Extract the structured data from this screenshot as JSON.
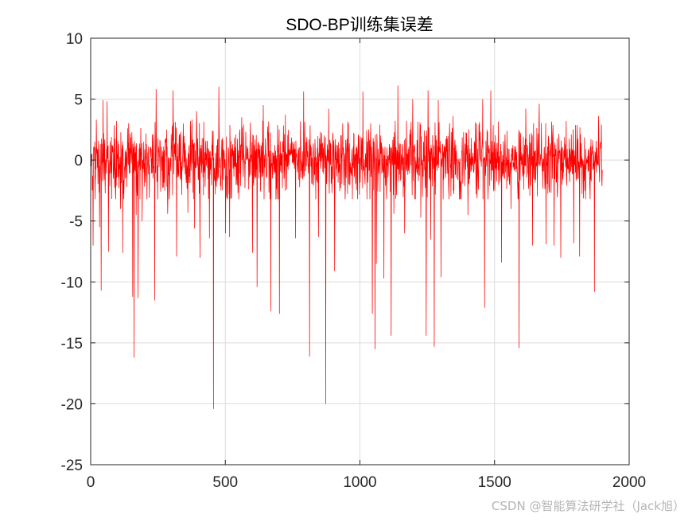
{
  "watermark": "CSDN @智能算法研学社（Jack旭）",
  "chart_data": {
    "type": "line",
    "title": "SDO-BP训练集误差",
    "xlabel": "",
    "ylabel": "",
    "xlim": [
      0,
      2000
    ],
    "ylim": [
      -25,
      10
    ],
    "xticks": [
      0,
      500,
      1000,
      1500,
      2000
    ],
    "yticks": [
      -25,
      -20,
      -15,
      -10,
      -5,
      0,
      5,
      10
    ],
    "xtick_labels": [
      "0",
      "500",
      "1000",
      "1500",
      "2000"
    ],
    "ytick_labels": [
      "-25",
      "-20",
      "-15",
      "-10",
      "-5",
      "0",
      "5",
      "10"
    ],
    "grid": true,
    "colors": {
      "series": "#ff0000",
      "grid": "#dcdcdc",
      "axes": "#262626"
    },
    "series": [
      {
        "name": "",
        "n_points": 1900,
        "baseline_amplitude": 1.2,
        "notable_points": [
          {
            "x": 8,
            "y": -7.0
          },
          {
            "x": 20,
            "y": 3.3
          },
          {
            "x": 32,
            "y": -5.5
          },
          {
            "x": 38,
            "y": -10.7
          },
          {
            "x": 45,
            "y": 4.9
          },
          {
            "x": 60,
            "y": 4.8
          },
          {
            "x": 65,
            "y": -7.5
          },
          {
            "x": 95,
            "y": 3.2
          },
          {
            "x": 110,
            "y": -4.0
          },
          {
            "x": 118,
            "y": -7.6
          },
          {
            "x": 140,
            "y": 3.0
          },
          {
            "x": 155,
            "y": -11.2
          },
          {
            "x": 160,
            "y": -16.2
          },
          {
            "x": 168,
            "y": -4.5
          },
          {
            "x": 175,
            "y": -11.3
          },
          {
            "x": 190,
            "y": -5.0
          },
          {
            "x": 237,
            "y": -11.5
          },
          {
            "x": 242,
            "y": 5.8
          },
          {
            "x": 285,
            "y": -4.4
          },
          {
            "x": 305,
            "y": 5.7
          },
          {
            "x": 318,
            "y": -7.9
          },
          {
            "x": 360,
            "y": -4.3
          },
          {
            "x": 375,
            "y": 3.3
          },
          {
            "x": 385,
            "y": -5.6
          },
          {
            "x": 392,
            "y": 4.0
          },
          {
            "x": 405,
            "y": -8.0
          },
          {
            "x": 440,
            "y": -6.4
          },
          {
            "x": 455,
            "y": -20.4
          },
          {
            "x": 462,
            "y": -2.8
          },
          {
            "x": 475,
            "y": 6.0
          },
          {
            "x": 500,
            "y": -6.0
          },
          {
            "x": 515,
            "y": -6.3
          },
          {
            "x": 560,
            "y": 3.5
          },
          {
            "x": 600,
            "y": -7.6
          },
          {
            "x": 617,
            "y": -10.4
          },
          {
            "x": 640,
            "y": 4.5
          },
          {
            "x": 668,
            "y": -12.4
          },
          {
            "x": 700,
            "y": -12.6
          },
          {
            "x": 722,
            "y": 3.7
          },
          {
            "x": 760,
            "y": -6.4
          },
          {
            "x": 790,
            "y": 5.6
          },
          {
            "x": 812,
            "y": -16.1
          },
          {
            "x": 845,
            "y": -6.3
          },
          {
            "x": 872,
            "y": -20.0
          },
          {
            "x": 883,
            "y": 4.2
          },
          {
            "x": 905,
            "y": -9.1
          },
          {
            "x": 935,
            "y": 3.0
          },
          {
            "x": 1010,
            "y": 5.6
          },
          {
            "x": 1045,
            "y": -12.6
          },
          {
            "x": 1055,
            "y": -15.5
          },
          {
            "x": 1060,
            "y": -8.5
          },
          {
            "x": 1088,
            "y": -9.7
          },
          {
            "x": 1115,
            "y": -14.4
          },
          {
            "x": 1125,
            "y": -4.4
          },
          {
            "x": 1140,
            "y": 6.1
          },
          {
            "x": 1165,
            "y": -6.0
          },
          {
            "x": 1195,
            "y": 5.0
          },
          {
            "x": 1225,
            "y": -4.7
          },
          {
            "x": 1245,
            "y": -14.4
          },
          {
            "x": 1252,
            "y": 5.7
          },
          {
            "x": 1262,
            "y": -6.5
          },
          {
            "x": 1275,
            "y": -15.3
          },
          {
            "x": 1290,
            "y": 4.9
          },
          {
            "x": 1300,
            "y": -9.6
          },
          {
            "x": 1345,
            "y": 3.6
          },
          {
            "x": 1400,
            "y": -4.5
          },
          {
            "x": 1455,
            "y": 5.0
          },
          {
            "x": 1462,
            "y": -12.1
          },
          {
            "x": 1485,
            "y": 5.7
          },
          {
            "x": 1525,
            "y": -8.4
          },
          {
            "x": 1560,
            "y": -4.0
          },
          {
            "x": 1590,
            "y": -15.4
          },
          {
            "x": 1615,
            "y": 4.2
          },
          {
            "x": 1640,
            "y": -7.0
          },
          {
            "x": 1665,
            "y": 4.6
          },
          {
            "x": 1690,
            "y": -6.9
          },
          {
            "x": 1720,
            "y": -7.0
          },
          {
            "x": 1745,
            "y": -8.0
          },
          {
            "x": 1765,
            "y": 3.2
          },
          {
            "x": 1793,
            "y": -6.8
          },
          {
            "x": 1815,
            "y": -7.9
          },
          {
            "x": 1870,
            "y": -10.8
          },
          {
            "x": 1885,
            "y": 3.6
          }
        ]
      }
    ]
  }
}
